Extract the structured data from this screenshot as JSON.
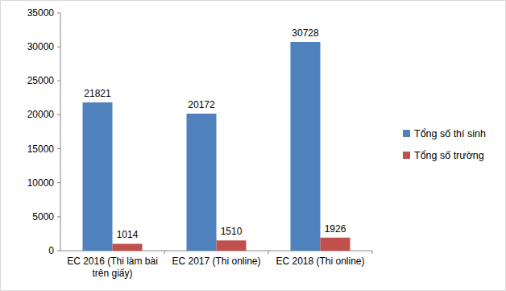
{
  "chart_data": {
    "type": "bar",
    "categories": [
      "EC 2016 (Thi làm bài trên giấy)",
      "EC 2017 (Thi online)",
      "EC 2018 (Thi online)"
    ],
    "series": [
      {
        "name": "Tổng số thí sinh",
        "color": "#4f81bd",
        "values": [
          21821,
          20172,
          30728
        ]
      },
      {
        "name": "Tổng số trường",
        "color": "#c0504d",
        "values": [
          1014,
          1510,
          1926
        ]
      }
    ],
    "ylim": [
      0,
      35000
    ],
    "yticks": [
      0,
      5000,
      10000,
      15000,
      20000,
      25000,
      30000,
      35000
    ],
    "grid": false,
    "legend": "right",
    "data_labels": true
  }
}
